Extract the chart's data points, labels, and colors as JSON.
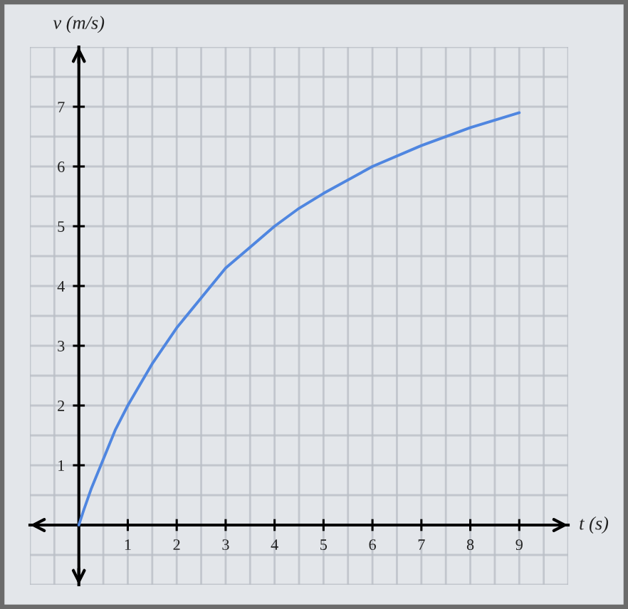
{
  "chart_data": {
    "type": "line",
    "xlabel": "t (s)",
    "ylabel": "v (m/s)",
    "x": [
      0,
      0.1,
      0.25,
      0.5,
      0.75,
      1,
      1.25,
      1.5,
      2,
      2.5,
      3,
      3.5,
      4,
      4.5,
      5,
      6,
      7,
      8,
      9
    ],
    "values": [
      0,
      0.25,
      0.6,
      1.1,
      1.6,
      2.0,
      2.35,
      2.7,
      3.3,
      3.8,
      4.3,
      4.65,
      5.0,
      5.3,
      5.55,
      6.0,
      6.35,
      6.65,
      6.9
    ],
    "color": "#4f86e0",
    "line_style": "solid",
    "xlim": [
      -1,
      10
    ],
    "ylim": [
      -1,
      8
    ],
    "xticks": [
      1,
      2,
      3,
      4,
      5,
      6,
      7,
      8,
      9
    ],
    "yticks": [
      1,
      2,
      3,
      4,
      5,
      6,
      7
    ],
    "grid": true
  }
}
